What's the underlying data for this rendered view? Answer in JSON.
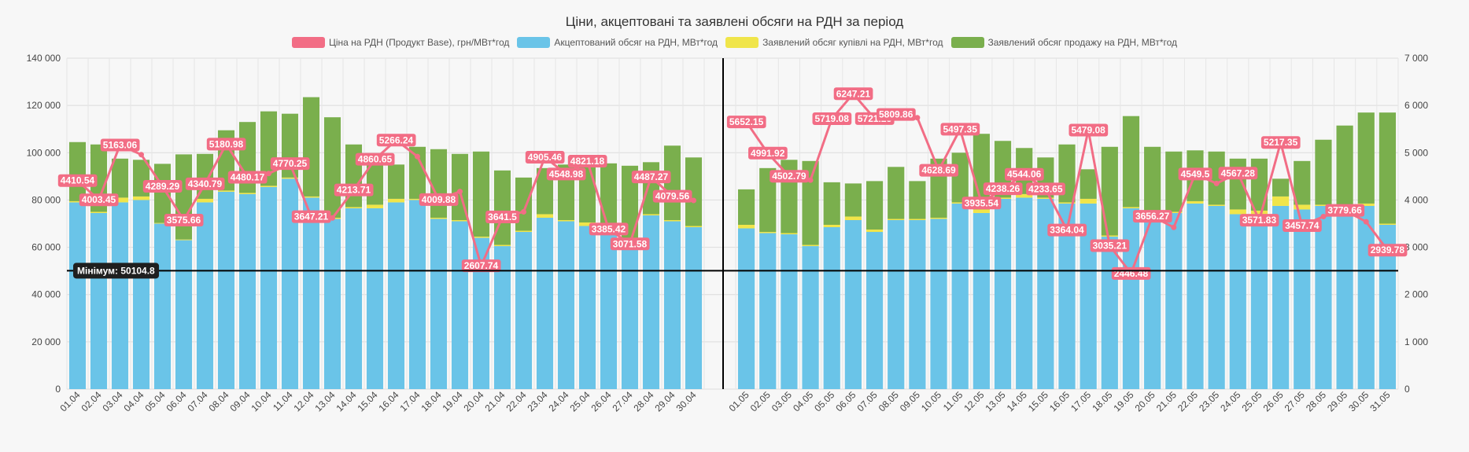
{
  "chart_data": {
    "type": "bar",
    "title": "Ціни, акцептовані та заявлені обсяги на РДН за період",
    "legend_position": "top",
    "grid": true,
    "y_left_lim": [
      0,
      140000
    ],
    "y_left_ticks": [
      "0",
      "20 000",
      "40 000",
      "60 000",
      "80 000",
      "100 000",
      "120 000",
      "140 000"
    ],
    "y_right_lim": [
      0,
      7000
    ],
    "y_right_ticks": [
      "0",
      "1 000",
      "2 000",
      "3 000",
      "4 000",
      "5 000",
      "6 000",
      "7 000"
    ],
    "panels": [
      {
        "categories": [
          "01.04",
          "02.04",
          "03.04",
          "04.04",
          "05.04",
          "06.04",
          "07.04",
          "08.04",
          "09.04",
          "10.04",
          "11.04",
          "12.04",
          "13.04",
          "14.04",
          "15.04",
          "16.04",
          "17.04",
          "18.04",
          "19.04",
          "20.04",
          "21.04",
          "22.04",
          "23.04",
          "24.04",
          "25.04",
          "26.04",
          "27.04",
          "28.04",
          "29.04",
          "30.04"
        ],
        "accepted": [
          79000,
          74500,
          79000,
          80000,
          70000,
          63000,
          79000,
          83500,
          82500,
          85500,
          89000,
          81000,
          72000,
          76500,
          76500,
          79000,
          80000,
          72000,
          71000,
          64000,
          60500,
          66500,
          72500,
          71000,
          69000,
          68000,
          61000,
          73500,
          71000,
          68500
        ],
        "buy": [
          500,
          500,
          2000,
          1500,
          300,
          300,
          1500,
          500,
          500,
          500,
          500,
          500,
          500,
          500,
          1500,
          1500,
          500,
          500,
          500,
          500,
          500,
          500,
          1500,
          500,
          1500,
          500,
          500,
          500,
          500,
          500
        ],
        "sell": [
          25000,
          28500,
          16500,
          15500,
          25000,
          36000,
          19000,
          25500,
          30000,
          31500,
          27000,
          42000,
          42500,
          26500,
          19500,
          14500,
          22000,
          29000,
          28000,
          36000,
          31500,
          22500,
          19500,
          23500,
          24500,
          27000,
          33000,
          22000,
          31500,
          29000
        ],
        "price": [
          4410.54,
          4003.45,
          5163.06,
          4960,
          4289.29,
          3575.66,
          4340.79,
          5180.98,
          4480.17,
          4560,
          4770.25,
          3647.21,
          3620,
          4213.71,
          4860.65,
          5266.24,
          4920,
          4009.88,
          4180,
          2607.74,
          3641.5,
          3750,
          4905.46,
          4548.98,
          4821.18,
          3385.42,
          3071.58,
          4487.27,
          4079.56,
          3990
        ],
        "price_labels": [
          "4410.54",
          "4003.45",
          "5163.06",
          "",
          "4289.29",
          "3575.66",
          "4340.79",
          "5180.98",
          "4480.17",
          "",
          "4770.25",
          "3647.21",
          "",
          "4213.71",
          "4860.65",
          "5266.24",
          "",
          "4009.88",
          "",
          "2607.74",
          "3641.5",
          "",
          "4905.46",
          "4548.98",
          "4821.18",
          "3385.42",
          "3071.58",
          "4487.27",
          "4079.56",
          ""
        ]
      },
      {
        "categories": [
          "01.05",
          "02.05",
          "03.05",
          "04.05",
          "05.05",
          "06.05",
          "07.05",
          "08.05",
          "09.05",
          "10.05",
          "11.05",
          "12.05",
          "13.05",
          "14.05",
          "15.05",
          "16.05",
          "17.05",
          "18.05",
          "19.05",
          "20.05",
          "21.05",
          "22.05",
          "23.05",
          "24.05",
          "25.05",
          "26.05",
          "27.05",
          "28.05",
          "29.05",
          "30.05",
          "31.05"
        ],
        "accepted": [
          68000,
          66000,
          65500,
          60500,
          68500,
          71500,
          66500,
          71500,
          71500,
          72000,
          78500,
          74500,
          80500,
          81000,
          80500,
          78500,
          78500,
          64500,
          76500,
          72000,
          74500,
          78500,
          77500,
          74000,
          73500,
          77500,
          76000,
          77500,
          77500,
          77500,
          69500
        ],
        "buy": [
          1500,
          500,
          500,
          500,
          1000,
          1500,
          1000,
          500,
          500,
          500,
          500,
          1500,
          500,
          1500,
          500,
          500,
          2000,
          500,
          500,
          500,
          500,
          1000,
          500,
          2000,
          2000,
          4000,
          2000,
          500,
          500,
          1000,
          500
        ],
        "sell": [
          15000,
          27000,
          31000,
          35500,
          18000,
          14000,
          20500,
          22000,
          16000,
          25000,
          21000,
          32000,
          24000,
          19500,
          17000,
          24500,
          12500,
          37500,
          38500,
          30000,
          25500,
          21500,
          22500,
          21500,
          22000,
          7500,
          18500,
          27500,
          33500,
          38500,
          47000
        ],
        "price": [
          5652.15,
          4991.92,
          4502.79,
          4420,
          5719.08,
          6247.21,
          5721.23,
          5809.86,
          5740,
          4628.69,
          5497.35,
          3935.54,
          4238.26,
          4544.06,
          4233.65,
          3364.04,
          5479.08,
          3035.21,
          2446.48,
          3656.27,
          3420,
          4549.5,
          4350,
          4567.28,
          3571.83,
          5217.35,
          3457.74,
          3650,
          3779.66,
          3540,
          2939.78
        ],
        "price_labels": [
          "5652.15",
          "4991.92",
          "4502.79",
          "",
          "5719.08",
          "6247.21",
          "5721.23",
          "5809.86",
          "",
          "4628.69",
          "5497.35",
          "3935.54",
          "4238.26",
          "4544.06",
          "4233.65",
          "3364.04",
          "5479.08",
          "3035.21",
          "2446.48",
          "3656.27",
          "",
          "4549.5",
          "",
          "4567.28",
          "3571.83",
          "5217.35",
          "3457.74",
          "",
          "3779.66",
          "",
          "2939.78"
        ]
      }
    ],
    "min_line": {
      "value": 50104.8,
      "label": "Мінімум: 50104.8"
    },
    "series": [
      {
        "name": "Ціна на РДН (Продукт Base), грн/МВт*год",
        "color": "#f26d85",
        "axis": "right"
      },
      {
        "name": "Акцептований обсяг на РДН, МВт*год",
        "color": "#6ac4e8",
        "axis": "left"
      },
      {
        "name": "Заявлений обсяг купівлі на РДН, МВт*год",
        "color": "#f0e54a",
        "axis": "left"
      },
      {
        "name": "Заявлений обсяг продажу на РДН, МВт*год",
        "color": "#7aaf4d",
        "axis": "left"
      }
    ]
  }
}
